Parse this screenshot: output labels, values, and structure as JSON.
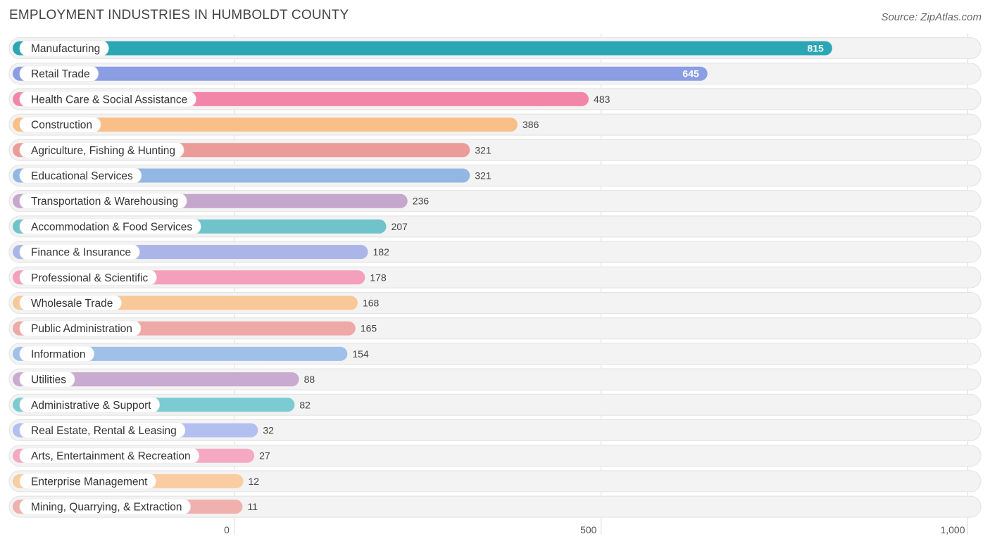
{
  "header": {
    "title": "EMPLOYMENT INDUSTRIES IN HUMBOLDT COUNTY",
    "source": "Source: ZipAtlas.com"
  },
  "chart_data": {
    "type": "bar",
    "orientation": "horizontal",
    "title": "EMPLOYMENT INDUSTRIES IN HUMBOLDT COUNTY",
    "xlabel": "",
    "ylabel": "",
    "xlim": [
      0,
      1000
    ],
    "ticks": [
      0,
      500,
      1000
    ],
    "tick_labels": [
      "0",
      "500",
      "1,000"
    ],
    "categories": [
      "Manufacturing",
      "Retail Trade",
      "Health Care & Social Assistance",
      "Construction",
      "Agriculture, Fishing & Hunting",
      "Educational Services",
      "Transportation & Warehousing",
      "Accommodation & Food Services",
      "Finance & Insurance",
      "Professional & Scientific",
      "Wholesale Trade",
      "Public Administration",
      "Information",
      "Utilities",
      "Administrative & Support",
      "Real Estate, Rental & Leasing",
      "Arts, Entertainment & Recreation",
      "Enterprise Management",
      "Mining, Quarrying, & Extraction"
    ],
    "values": [
      815,
      645,
      483,
      386,
      321,
      321,
      236,
      207,
      182,
      178,
      168,
      165,
      154,
      88,
      82,
      32,
      27,
      12,
      11
    ],
    "value_labels": [
      "815",
      "645",
      "483",
      "386",
      "321",
      "321",
      "236",
      "207",
      "182",
      "178",
      "168",
      "165",
      "154",
      "88",
      "82",
      "32",
      "27",
      "12",
      "11"
    ],
    "colors": [
      "#2aa6b4",
      "#8b9de3",
      "#f286a8",
      "#f9bf86",
      "#eb9b98",
      "#92b7e3",
      "#c5a6cc",
      "#6fc4cc",
      "#abb5e8",
      "#f49fbb",
      "#f9c898",
      "#eea9a6",
      "#9fc0e8",
      "#c9aad0",
      "#7ccbd2",
      "#b3bff0",
      "#f6a9c2",
      "#f9cca2",
      "#f0b0ad"
    ]
  }
}
